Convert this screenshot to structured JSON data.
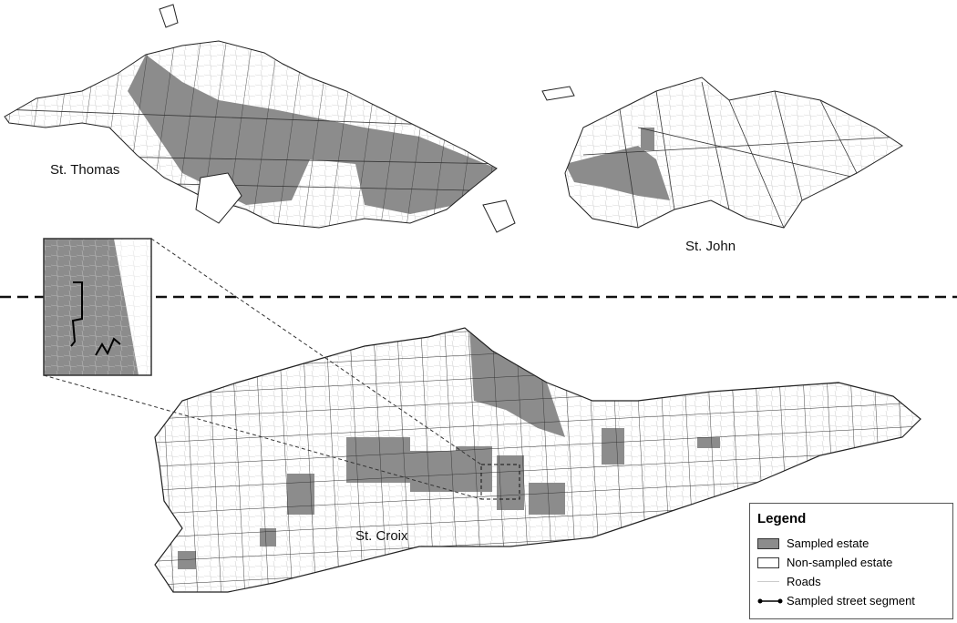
{
  "labels": {
    "st_thomas": "St. Thomas",
    "st_john": "St. John",
    "st_croix": "St. Croix"
  },
  "legend": {
    "title": "Legend",
    "items": [
      {
        "label": "Sampled estate",
        "symbol": "gray-fill",
        "color": "#8c8c8c"
      },
      {
        "label": "Non-sampled estate",
        "symbol": "white-fill",
        "color": "#ffffff"
      },
      {
        "label": "Roads",
        "symbol": "thin-line",
        "color": "#cccccc"
      },
      {
        "label": "Sampled street segment",
        "symbol": "line-with-dots",
        "color": "#000000"
      }
    ]
  },
  "colors": {
    "sampled": "#8c8c8c",
    "nonsampled": "#ffffff",
    "border": "#222222",
    "roads": "#cfcfcf"
  }
}
